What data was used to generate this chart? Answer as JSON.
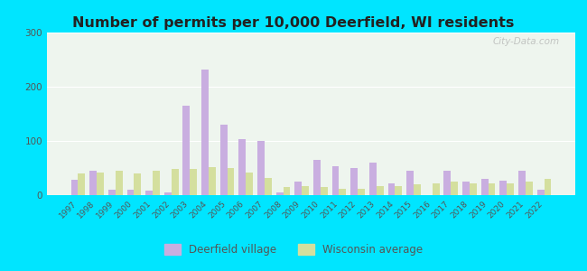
{
  "title": "Number of permits per 10,000 Deerfield, WI residents",
  "years": [
    1997,
    1998,
    1999,
    2000,
    2001,
    2002,
    2003,
    2004,
    2005,
    2006,
    2007,
    2008,
    2009,
    2010,
    2011,
    2012,
    2013,
    2014,
    2015,
    2016,
    2017,
    2018,
    2019,
    2020,
    2021,
    2022
  ],
  "deerfield": [
    28,
    45,
    10,
    10,
    8,
    5,
    165,
    232,
    130,
    103,
    100,
    5,
    25,
    65,
    53,
    50,
    60,
    22,
    45,
    0,
    45,
    25,
    30,
    27,
    45,
    10
  ],
  "wisconsin": [
    40,
    42,
    45,
    40,
    45,
    48,
    48,
    52,
    50,
    42,
    32,
    15,
    17,
    15,
    12,
    12,
    17,
    17,
    20,
    22,
    25,
    22,
    22,
    22,
    25,
    30
  ],
  "deerfield_color": "#c9aee0",
  "wisconsin_color": "#d4df9e",
  "bg_outer": "#00e5ff",
  "bg_plot": "#eef5ee",
  "ylim": [
    0,
    300
  ],
  "yticks": [
    0,
    100,
    200,
    300
  ],
  "bar_width": 0.38,
  "legend_deerfield": "Deerfield village",
  "legend_wisconsin": "Wisconsin average",
  "title_fontsize": 11.5
}
